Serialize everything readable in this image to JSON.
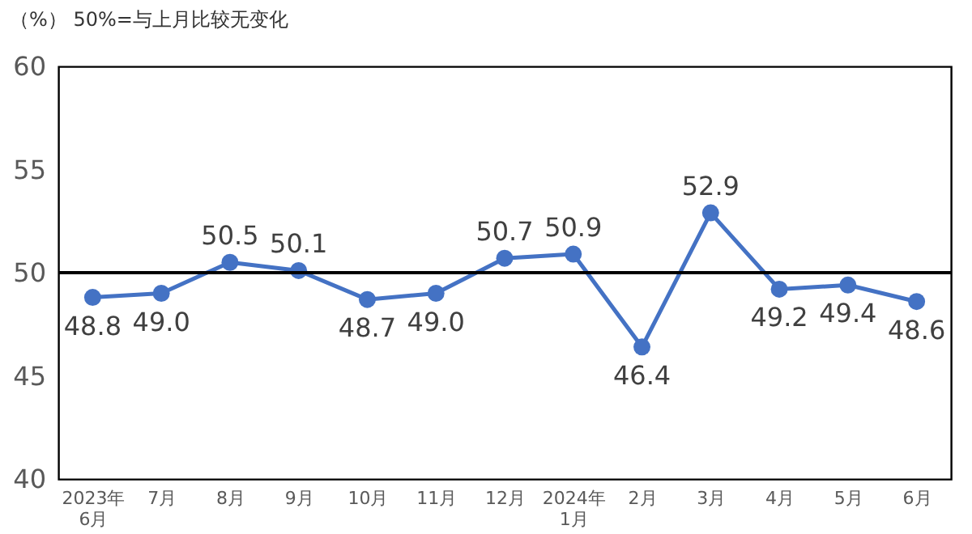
{
  "chart_data": {
    "type": "line",
    "annotations": [
      "（%）  50%=与上月比较无变化"
    ],
    "categories": [
      "2023年\n6月",
      "7月",
      "8月",
      "9月",
      "10月",
      "11月",
      "12月",
      "2024年\n1月",
      "2月",
      "3月",
      "4月",
      "5月",
      "6月"
    ],
    "series": [
      {
        "color": "#4472c4",
        "values": [
          48.8,
          49.0,
          50.5,
          50.1,
          48.7,
          49.0,
          50.7,
          50.9,
          46.4,
          52.9,
          49.2,
          49.4,
          48.6
        ],
        "value_labels": [
          "48.8",
          "49.0",
          "50.5",
          "50.1",
          "48.7",
          "49.0",
          "50.7",
          "50.9",
          "46.4",
          "52.9",
          "49.2",
          "49.4",
          "48.6"
        ]
      }
    ],
    "ylim": [
      40,
      60
    ],
    "yticks": [
      40,
      45,
      50,
      55,
      60
    ],
    "ref_lines": [
      {
        "axis": "y",
        "value": 50,
        "color": "#000000"
      }
    ],
    "marker": "circle",
    "line_style": "solid",
    "grid": false
  }
}
